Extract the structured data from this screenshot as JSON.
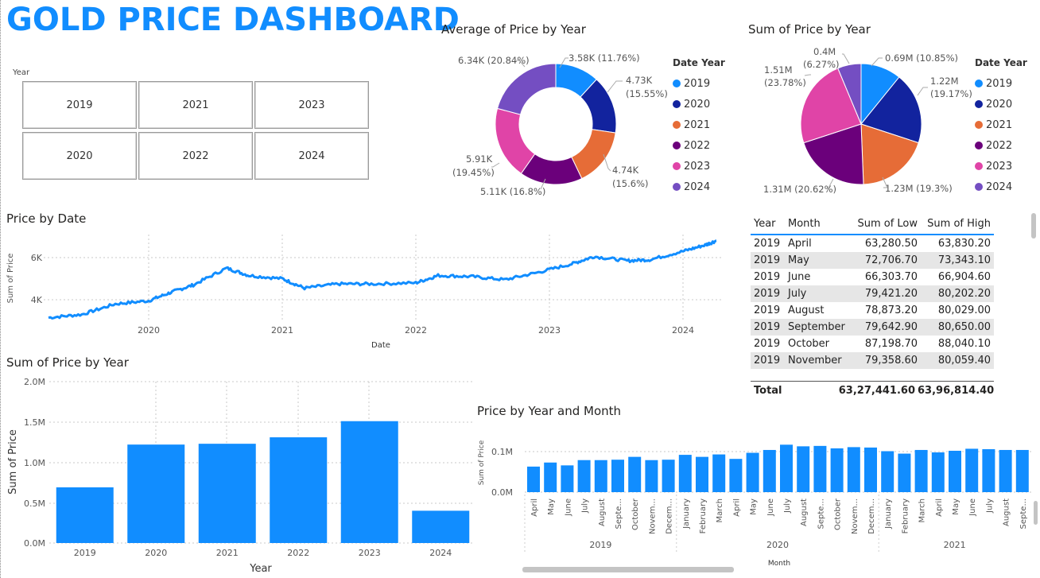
{
  "header": {
    "title": "GOLD PRICE DASHBOARD"
  },
  "slicer": {
    "label": "Year",
    "tiles": [
      "2019",
      "2021",
      "2023",
      "2020",
      "2022",
      "2024"
    ]
  },
  "colors": {
    "accent": "#118DFF",
    "y2019": "#118DFF",
    "y2020": "#12239E",
    "y2021": "#E66C37",
    "y2022": "#6B007B",
    "y2023": "#E044A7",
    "y2024": "#744EC2"
  },
  "donut": {
    "title": "Average of Price by Year",
    "legend_title": "Date Year",
    "legend": [
      "2019",
      "2020",
      "2021",
      "2022",
      "2023",
      "2024"
    ],
    "labels": [
      {
        "line1": "3.58K (11.76%)",
        "line2": ""
      },
      {
        "line1": "4.73K",
        "line2": "(15.55%)"
      },
      {
        "line1": "4.74K",
        "line2": "(15.6%)"
      },
      {
        "line1": "5.11K (16.8%)",
        "line2": ""
      },
      {
        "line1": "5.91K",
        "line2": "(19.45%)"
      },
      {
        "line1": "6.34K (20.84%)",
        "line2": ""
      }
    ]
  },
  "pie": {
    "title": "Sum of Price by Year",
    "legend_title": "Date Year",
    "legend": [
      "2019",
      "2020",
      "2021",
      "2022",
      "2023",
      "2024"
    ],
    "labels": [
      {
        "line1": "0.69M (10.85%)",
        "line2": ""
      },
      {
        "line1": "1.22M",
        "line2": "(19.17%)"
      },
      {
        "line1": "1.23M (19.3%)",
        "line2": ""
      },
      {
        "line1": "1.31M (20.62%)",
        "line2": ""
      },
      {
        "line1": "1.51M",
        "line2": "(23.78%)"
      },
      {
        "line1": "0.4M",
        "line2": "(6.27%)"
      }
    ]
  },
  "line_chart": {
    "title": "Price by Date",
    "ylabel": "Sum of Price",
    "xlabel": "Date",
    "yticks": [
      "6K",
      "4K"
    ],
    "xticks": [
      "2020",
      "2021",
      "2022",
      "2023",
      "2024"
    ]
  },
  "bar_chart": {
    "title": "Sum of Price by Year",
    "ylabel": "Sum of Price",
    "xlabel": "Year",
    "yticks": [
      "2.0M",
      "1.5M",
      "1.0M",
      "0.5M",
      "0.0M"
    ]
  },
  "month_chart": {
    "title": "Price by Year and Month",
    "ylabel": "Sum of Price",
    "xlabel": "Month",
    "yticks": [
      "0.1M",
      "0.0M"
    ],
    "year_labels": [
      "2019",
      "2020",
      "2021"
    ]
  },
  "table": {
    "headers": [
      "Year",
      "Month",
      "Sum of Low",
      "Sum of High"
    ],
    "rows": [
      [
        "2019",
        "April",
        "63,280.50",
        "63,830.20"
      ],
      [
        "2019",
        "May",
        "72,706.70",
        "73,343.10"
      ],
      [
        "2019",
        "June",
        "66,303.70",
        "66,904.60"
      ],
      [
        "2019",
        "July",
        "79,421.20",
        "80,202.20"
      ],
      [
        "2019",
        "August",
        "78,873.20",
        "80,029.00"
      ],
      [
        "2019",
        "September",
        "79,642.90",
        "80,650.00"
      ],
      [
        "2019",
        "October",
        "87,198.70",
        "88,040.10"
      ],
      [
        "2019",
        "November",
        "79,358.60",
        "80,059.40"
      ]
    ],
    "total": {
      "label": "Total",
      "low": "63,27,441.60",
      "high": "63,96,814.40"
    }
  },
  "chart_data": [
    {
      "type": "pie",
      "title": "Average of Price by Year",
      "categories": [
        "2019",
        "2020",
        "2021",
        "2022",
        "2023",
        "2024"
      ],
      "values": [
        3580,
        4730,
        4740,
        5110,
        5910,
        6340
      ],
      "percent": [
        11.76,
        15.55,
        15.6,
        16.8,
        19.45,
        20.84
      ],
      "donut": true,
      "legend": "right"
    },
    {
      "type": "pie",
      "title": "Sum of Price by Year",
      "categories": [
        "2019",
        "2020",
        "2021",
        "2022",
        "2023",
        "2024"
      ],
      "values": [
        690000,
        1220000,
        1230000,
        1310000,
        1510000,
        400000
      ],
      "percent": [
        10.85,
        19.17,
        19.3,
        20.62,
        23.78,
        6.27
      ],
      "legend": "right"
    },
    {
      "type": "line",
      "title": "Price by Date",
      "xlabel": "Date",
      "ylabel": "Sum of Price",
      "x": [
        "2019-04",
        "2019-07",
        "2019-10",
        "2020-01",
        "2020-03",
        "2020-05",
        "2020-08",
        "2020-10",
        "2021-01",
        "2021-03",
        "2021-06",
        "2021-09",
        "2022-01",
        "2022-03",
        "2022-06",
        "2022-09",
        "2022-12",
        "2023-03",
        "2023-05",
        "2023-08",
        "2023-10",
        "2024-01",
        "2024-03",
        "2024-04"
      ],
      "y": [
        3150,
        3300,
        3800,
        3950,
        4350,
        4700,
        5500,
        5150,
        5000,
        4550,
        4750,
        4750,
        4800,
        5150,
        5100,
        4950,
        5300,
        5700,
        6050,
        5850,
        5900,
        6300,
        6600,
        6800
      ],
      "ylim": [
        3000,
        7000
      ]
    },
    {
      "type": "bar",
      "title": "Sum of Price by Year",
      "xlabel": "Year",
      "ylabel": "Sum of Price",
      "categories": [
        "2019",
        "2020",
        "2021",
        "2022",
        "2023",
        "2024"
      ],
      "values": [
        690000,
        1220000,
        1230000,
        1310000,
        1510000,
        400000
      ],
      "ylim": [
        0,
        2000000
      ]
    },
    {
      "type": "bar",
      "title": "Price by Year and Month",
      "xlabel": "Month",
      "ylabel": "Sum of Price",
      "categories": [
        "April",
        "May",
        "June",
        "July",
        "August",
        "Septe...",
        "October",
        "Novem...",
        "Decem...",
        "January",
        "February",
        "March",
        "April",
        "May",
        "June",
        "July",
        "August",
        "Septe...",
        "October",
        "Novem...",
        "Decem...",
        "January",
        "February",
        "March",
        "April",
        "May",
        "June",
        "July",
        "August",
        "Septe..."
      ],
      "groups": [
        {
          "name": "2019",
          "count": 9
        },
        {
          "name": "2020",
          "count": 12
        },
        {
          "name": "2021",
          "count": 9
        }
      ],
      "values": [
        63000,
        73000,
        66000,
        79000,
        79000,
        80000,
        87000,
        79000,
        80000,
        92000,
        87000,
        93000,
        82000,
        97000,
        104000,
        117000,
        113000,
        114000,
        108000,
        111000,
        110000,
        101000,
        95000,
        104000,
        98000,
        102000,
        107000,
        106000,
        104000,
        104000
      ],
      "ylim": [
        0,
        160000
      ]
    }
  ]
}
